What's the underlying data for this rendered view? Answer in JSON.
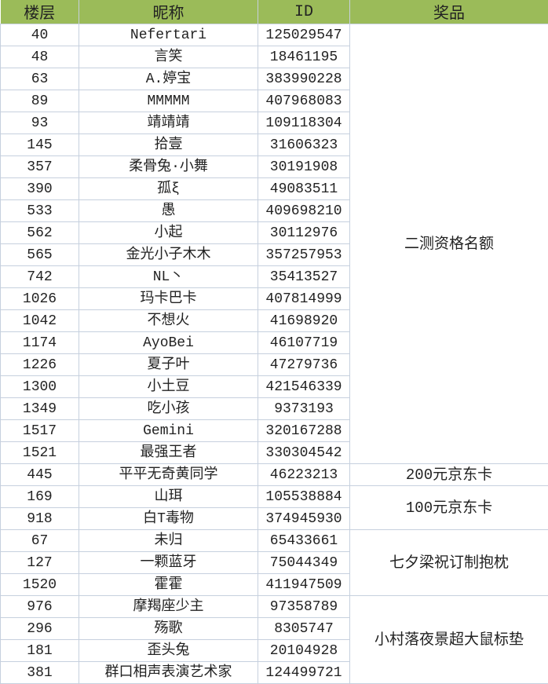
{
  "headers": [
    "楼层",
    "昵称",
    "ID",
    "奖品"
  ],
  "colors": {
    "header_bg": "#9bbb59",
    "grid": "#c6d0de"
  },
  "groups": [
    {
      "prize": "二测资格名额",
      "rows": [
        [
          "40",
          "Nefertari",
          "125029547"
        ],
        [
          "48",
          "言笑",
          "18461195"
        ],
        [
          "63",
          "A.婷宝",
          "383990228"
        ],
        [
          "89",
          "MMMMM",
          "407968083"
        ],
        [
          "93",
          "靖靖靖",
          "109118304"
        ],
        [
          "145",
          "拾壹",
          "31606323"
        ],
        [
          "357",
          "柔骨兔·小舞",
          "30191908"
        ],
        [
          "390",
          "孤ξ",
          "49083511"
        ],
        [
          "533",
          "愚",
          "409698210"
        ],
        [
          "562",
          "小起",
          "30112976"
        ],
        [
          "565",
          "金光小子木木",
          "357257953"
        ],
        [
          "742",
          "NL丶",
          "35413527"
        ],
        [
          "1026",
          "玛卡巴卡",
          "407814999"
        ],
        [
          "1042",
          "不想火",
          "41698920"
        ],
        [
          "1174",
          "AyoBei",
          "46107719"
        ],
        [
          "1226",
          "夏子叶",
          "47279736"
        ],
        [
          "1300",
          "小土豆",
          "421546339"
        ],
        [
          "1349",
          "吃小孩",
          "9373193"
        ],
        [
          "1517",
          "Gemini",
          "320167288"
        ],
        [
          "1521",
          "最强王者",
          "330304542"
        ]
      ]
    },
    {
      "prize": "200元京东卡",
      "rows": [
        [
          "445",
          "平平无奇黄同学",
          "46223213"
        ]
      ]
    },
    {
      "prize": "100元京东卡",
      "rows": [
        [
          "169",
          "山珥",
          "105538884"
        ],
        [
          "918",
          "白T毒物",
          "374945930"
        ]
      ]
    },
    {
      "prize": "七夕梁祝订制抱枕",
      "rows": [
        [
          "67",
          "未归",
          "65433661"
        ],
        [
          "127",
          "一颗蓝牙",
          "75044349"
        ],
        [
          "1520",
          "霍霍",
          "411947509"
        ]
      ]
    },
    {
      "prize": "小村落夜景超大鼠标垫",
      "rows": [
        [
          "976",
          "摩羯座少主",
          "97358789"
        ],
        [
          "296",
          "殇歌",
          "8305747"
        ],
        [
          "181",
          "歪头兔",
          "20104928"
        ],
        [
          "381",
          "群口相声表演艺术家",
          "124499721"
        ]
      ]
    }
  ]
}
